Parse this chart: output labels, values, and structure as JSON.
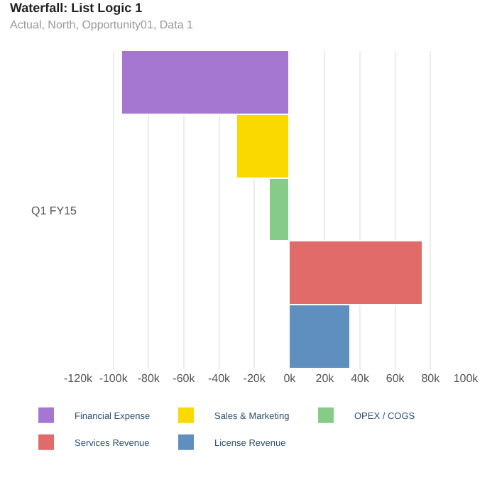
{
  "chart_data": {
    "type": "bar",
    "orientation": "horizontal",
    "title": "Waterfall: List Logic 1",
    "subtitle": "Actual, North, Opportunity01, Data 1",
    "categories": [
      null,
      null,
      "Q1 FY15",
      null,
      null
    ],
    "series": [
      {
        "name": "Financial Expense",
        "color": "#a577d1",
        "values": [
          -95000,
          null,
          null,
          null,
          null
        ]
      },
      {
        "name": "Sales & Marketing",
        "color": "#fad900",
        "values": [
          null,
          -30000,
          null,
          null,
          null
        ]
      },
      {
        "name": "OPEX / COGS",
        "color": "#86cb88",
        "values": [
          null,
          null,
          -11000,
          null,
          null
        ]
      },
      {
        "name": "Services Revenue",
        "color": "#e06b68",
        "values": [
          null,
          null,
          null,
          76000,
          null
        ]
      },
      {
        "name": "License Revenue",
        "color": "#5f8fbf",
        "values": [
          null,
          null,
          null,
          null,
          35000
        ]
      }
    ],
    "xlim": [
      -120000,
      100000
    ],
    "xticks": [
      {
        "value": -120000,
        "label": "-120k"
      },
      {
        "value": -100000,
        "label": "-100k"
      },
      {
        "value": -80000,
        "label": "-80k"
      },
      {
        "value": -60000,
        "label": "-60k"
      },
      {
        "value": -40000,
        "label": "-40k"
      },
      {
        "value": -20000,
        "label": "-20k"
      },
      {
        "value": 0,
        "label": "0k"
      },
      {
        "value": 20000,
        "label": "20k"
      },
      {
        "value": 40000,
        "label": "40k"
      },
      {
        "value": 60000,
        "label": "60k"
      },
      {
        "value": 80000,
        "label": "80k"
      },
      {
        "value": 100000,
        "label": "100k"
      }
    ],
    "grid": "x",
    "legend": "bottom"
  }
}
